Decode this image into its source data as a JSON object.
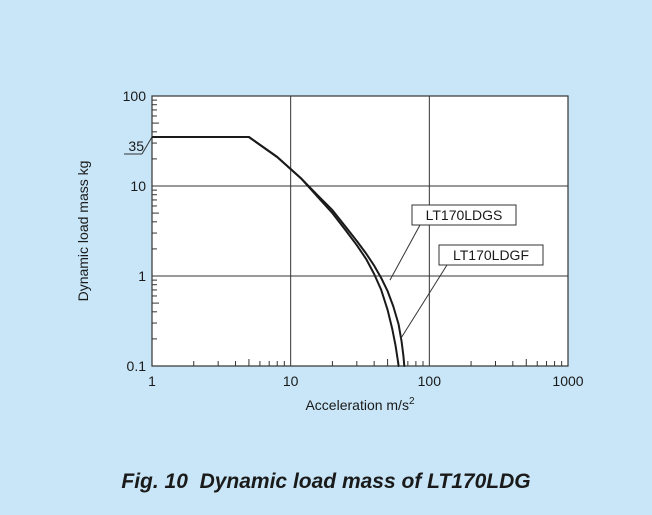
{
  "caption": {
    "figure_number": "Fig. 10",
    "title": "Dynamic load mass of LT170LDG"
  },
  "chart_data": {
    "type": "line",
    "xlabel": "Acceleration m/s",
    "xlabel_superscript": "2",
    "ylabel": "Dynamic load mass kg",
    "xscale": "log",
    "yscale": "log",
    "xlim": [
      1,
      1000
    ],
    "ylim": [
      0.1,
      100
    ],
    "grid": true,
    "x_tick_labels": [
      {
        "value": 1,
        "label": "1"
      },
      {
        "value": 10,
        "label": "10"
      },
      {
        "value": 100,
        "label": "100"
      },
      {
        "value": 1000,
        "label": "1000"
      }
    ],
    "y_tick_labels": [
      {
        "value": 0.1,
        "label": "0.1"
      },
      {
        "value": 1,
        "label": "1"
      },
      {
        "value": 10,
        "label": "10"
      },
      {
        "value": 100,
        "label": "100"
      }
    ],
    "y_annotation": {
      "value": 35,
      "label": "35"
    },
    "series": [
      {
        "name": "LT170LDGS",
        "x": [
          1,
          5,
          8,
          12,
          16,
          20,
          25,
          30,
          35,
          40,
          45,
          50,
          54,
          57,
          59,
          60,
          60.5
        ],
        "y": [
          35,
          35,
          21,
          12,
          7.3,
          5.0,
          3.2,
          2.2,
          1.55,
          1.05,
          0.7,
          0.42,
          0.26,
          0.17,
          0.12,
          0.1,
          0.1
        ]
      },
      {
        "name": "LT170LDGF",
        "x": [
          1,
          5,
          8,
          12,
          16,
          20,
          25,
          30,
          35,
          40,
          45,
          50,
          55,
          60,
          63,
          65,
          66,
          66.5
        ],
        "y": [
          35,
          35,
          21,
          12,
          7.6,
          5.4,
          3.5,
          2.45,
          1.78,
          1.3,
          0.95,
          0.68,
          0.46,
          0.29,
          0.19,
          0.13,
          0.1,
          0.1
        ]
      }
    ],
    "legend_labels": [
      {
        "series": "LT170LDGS",
        "anchor": {
          "x": 52,
          "y": 0.9
        }
      },
      {
        "series": "LT170LDGF",
        "anchor": {
          "x": 62,
          "y": 0.2
        }
      }
    ]
  }
}
